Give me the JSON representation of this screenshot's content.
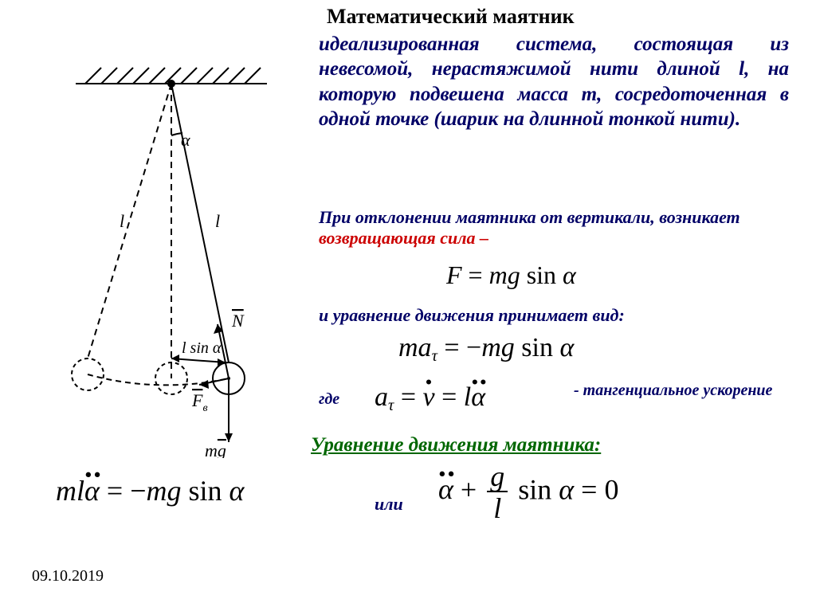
{
  "title": "Математический маятник",
  "para1_html": "идеализированная система, со­сто­я­щая из невесомой, нерастяжимой нити длиной <span style='font-weight:bold'>l</span>, на которую подвешена масса <span style='font-weight:bold'>m</span>, сосредоточенная в одной точке (шарик на длинной тонкой нити).",
  "para2_plain": "При отклонении маятника от вертикали, возникает ",
  "para2_red": "возвращающая сила –",
  "eq1_html": "<span class='ital'>F</span> = <span class='ital'>mg</span> sin <span class='ital'>α</span>",
  "para3": "и уравнение движения принимает вид:",
  "eq2_html": "<span class='ital'>ma</span><span class='sub'>τ</span> = −<span class='ital'>mg</span> sin <span class='ital'>α</span>",
  "gde": "где",
  "eq3_html": "<span class='ital'>a</span><span class='sub'>τ</span> = <span class='ital dot'>v</span> = <span class='ital'>l</span><span class='ital ddot'>α</span>",
  "tang": "- тангенциальное ускорение",
  "sect": "Уравнение движения маятника:",
  "eq4_html": "<span class='ital'>ml</span><span class='ital ddot'>α</span> = −<span class='ital'>mg</span> sin <span class='ital'>α</span>",
  "ili": "или",
  "eq5_html": "<span class='ital ddot'>α</span> + <span class='frac'><span class='num ital'>g</span><span class='den ital'>l</span></span> sin <span class='ital'>α</span> = 0",
  "date": "09.10.2019",
  "colors": {
    "text_blue": "#000066",
    "text_red": "#cc0000",
    "text_green": "#006600",
    "background": "#ffffff",
    "diagram_stroke": "#000000"
  },
  "diagram": {
    "type": "pendulum-schematic",
    "labels": {
      "angle": "α",
      "length": "l",
      "lsin": "l sin α",
      "N": "N",
      "Fv": "F",
      "Fv_sub": "в",
      "mg": "mg"
    },
    "stroke_width": 2,
    "hatch_spacing": 12,
    "bob_radius": 20,
    "angle_deg": 18
  }
}
